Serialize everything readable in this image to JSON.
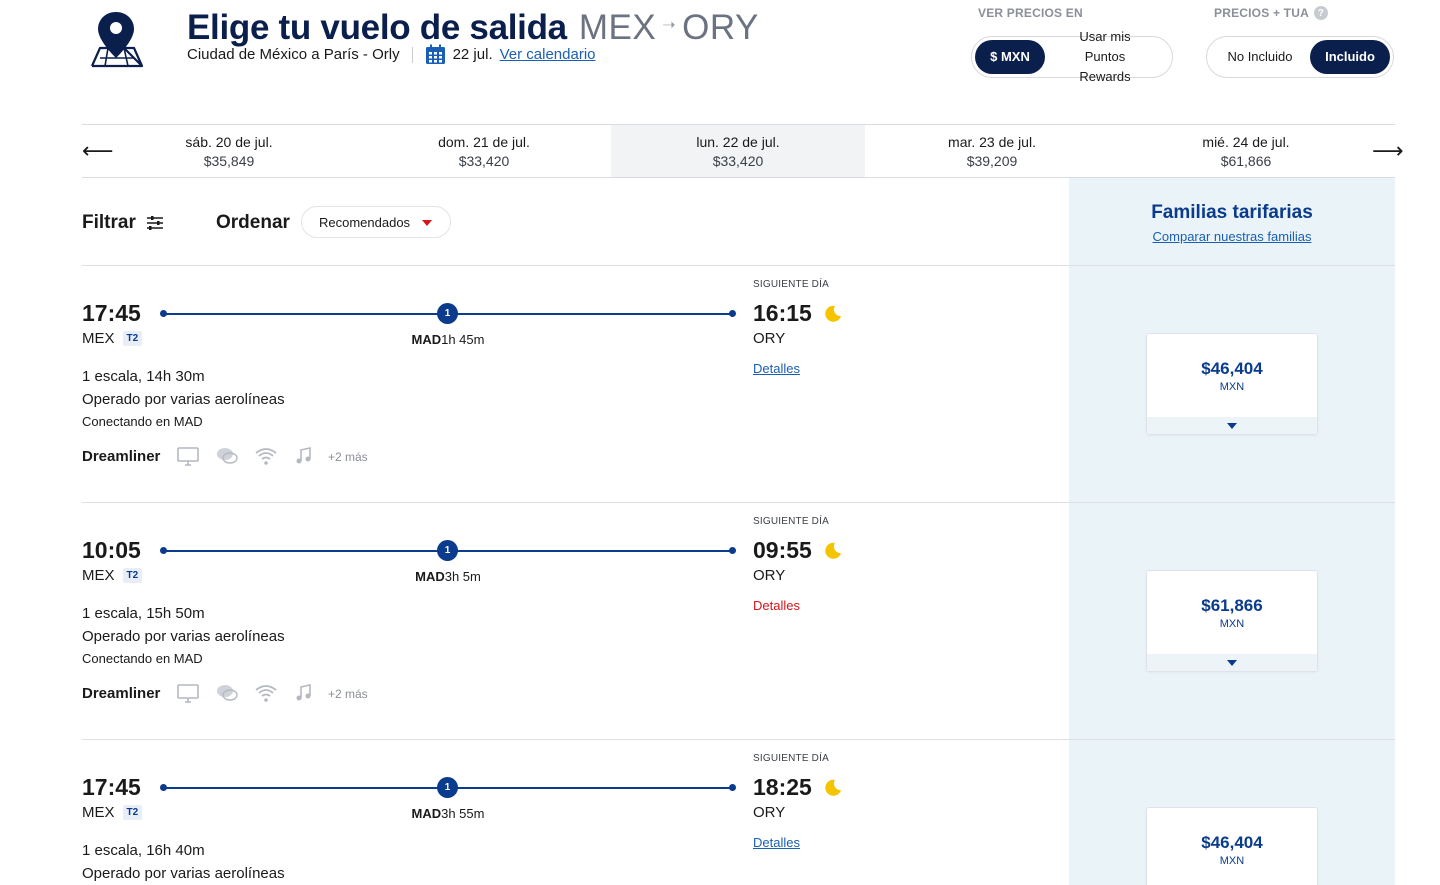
{
  "header": {
    "title": "Elige tu vuelo de salida",
    "origin": "MEX",
    "destination": "ORY",
    "route_text": "Ciudad de México a París - Orly",
    "date": "22 jul.",
    "calendar_link": "Ver calendario"
  },
  "price_settings": {
    "currency_heading": "VER PRECIOS EN",
    "currency_options": [
      "$ MXN",
      "Usar mis Puntos Rewards"
    ],
    "currency_selected": "$ MXN",
    "tua_heading": "PRECIOS + TUA",
    "tua_options": [
      "No Incluido",
      "Incluido"
    ],
    "tua_selected": "Incluido"
  },
  "date_strip": [
    {
      "day": "sáb. 20 de jul.",
      "price": "$35,849"
    },
    {
      "day": "dom. 21 de jul.",
      "price": "$33,420"
    },
    {
      "day": "lun. 22 de jul.",
      "price": "$33,420",
      "selected": true
    },
    {
      "day": "mar. 23 de jul.",
      "price": "$39,209"
    },
    {
      "day": "mié. 24 de jul.",
      "price": "$61,866"
    }
  ],
  "toolbar": {
    "filter_label": "Filtrar",
    "order_label": "Ordenar",
    "order_value": "Recomendados"
  },
  "fare_families": {
    "title": "Familias tarifarias",
    "link": "Comparar nuestras familias"
  },
  "flights": [
    {
      "dep_time": "17:45",
      "dep_code": "MEX",
      "terminal": "T2",
      "stop_count": "1",
      "stop_code": "MAD",
      "stop_duration": "1h 45m",
      "next_day": "SIGUIENTE DÍA",
      "arr_time": "16:15",
      "arr_code": "ORY",
      "details": "Detalles",
      "stops_info": "1 escala, 14h 30m",
      "operated": "Operado por varias aerolíneas",
      "connecting": "Conectando en MAD",
      "aircraft": "Dreamliner",
      "more": "+2 más",
      "price": "$46,404",
      "currency": "MXN"
    },
    {
      "dep_time": "10:05",
      "dep_code": "MEX",
      "terminal": "T2",
      "stop_count": "1",
      "stop_code": "MAD",
      "stop_duration": "3h 5m",
      "next_day": "SIGUIENTE DÍA",
      "arr_time": "09:55",
      "arr_code": "ORY",
      "details": "Detalles",
      "stops_info": "1 escala, 15h 50m",
      "operated": "Operado por varias aerolíneas",
      "connecting": "Conectando en MAD",
      "aircraft": "Dreamliner",
      "more": "+2 más",
      "price": "$61,866",
      "currency": "MXN"
    },
    {
      "dep_time": "17:45",
      "dep_code": "MEX",
      "terminal": "T2",
      "stop_count": "1",
      "stop_code": "MAD",
      "stop_duration": "3h 55m",
      "next_day": "SIGUIENTE DÍA",
      "arr_time": "18:25",
      "arr_code": "ORY",
      "details": "Detalles",
      "stops_info": "1 escala, 16h 40m",
      "operated": "Operado por varias aerolíneas",
      "price": "$46,404",
      "currency": "MXN"
    }
  ],
  "colors": {
    "navy": "#0b1f4d",
    "brand_blue": "#0b3b8c",
    "link_blue": "#1a5fb4",
    "alert_red": "#d7141a",
    "fare_column_bg": "#eaf3f8",
    "moon_yellow": "#f5c400"
  },
  "icons": [
    "map-pin-icon",
    "calendar-icon",
    "help-icon",
    "arrow-left-icon",
    "arrow-right-icon",
    "sliders-icon",
    "caret-down-icon",
    "moon-icon",
    "monitor-icon",
    "chat-icon",
    "wifi-icon",
    "music-icon"
  ]
}
